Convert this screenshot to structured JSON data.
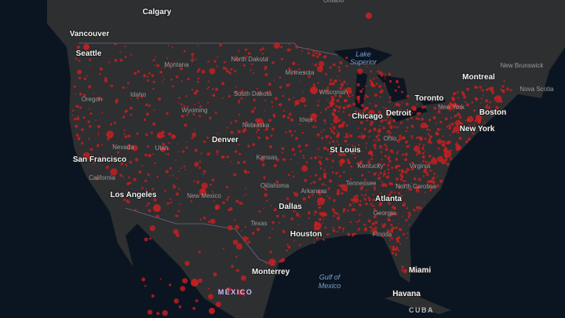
{
  "labels": {
    "cities": [
      "Calgary",
      "Vancouver",
      "Seattle",
      "Montreal",
      "Toronto",
      "Detroit",
      "Chicago",
      "Boston",
      "New York",
      "St Louis",
      "Denver",
      "San Francisco",
      "Los Angeles",
      "Dallas",
      "Houston",
      "Monterrey",
      "Miami",
      "Havana",
      "Atlanta"
    ],
    "regions": [
      "Ontario",
      "North Dakota",
      "Montana",
      "Minnesota",
      "Wisconsin",
      "Oregon",
      "Idaho",
      "Wyoming",
      "South Dakota",
      "Nebraska",
      "Iowa",
      "Ohio",
      "New York",
      "Nevada",
      "Utah",
      "Kansas",
      "Kentucky",
      "Virginia",
      "California",
      "Oklahoma",
      "Arkansas",
      "Tennessee",
      "North Carolina",
      "New Mexico",
      "Georgia",
      "Texas",
      "Florida",
      "New Brunswick",
      "Nova Scotia"
    ],
    "water": [
      "Lake",
      "Superior",
      "Gulf of",
      "Mexico"
    ],
    "countries": [
      "MÉXICO",
      "CUBA"
    ]
  }
}
